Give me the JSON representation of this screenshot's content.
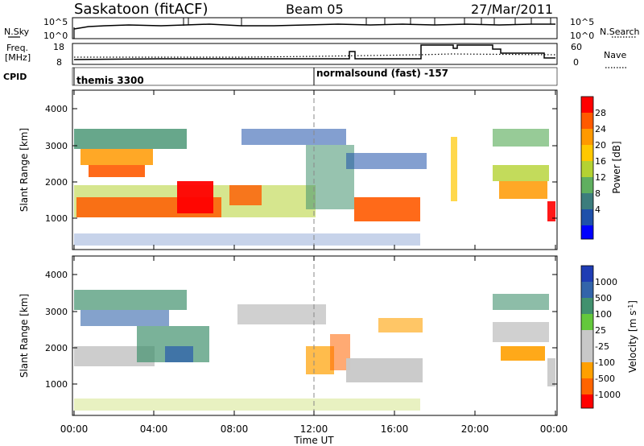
{
  "header": {
    "station": "Saskatoon (fitACF)",
    "beam": "Beam 05",
    "date": "27/Mar/2011"
  },
  "noise_panel": {
    "left_label": "N.Sky",
    "right_label": "N.Search",
    "left_ticks": [
      "10^5",
      "10^0"
    ],
    "right_ticks": [
      "10^5",
      "10^0"
    ]
  },
  "freq_panel": {
    "left_label_1": "Freq.",
    "left_label_2": "[MHz]",
    "left_ticks": [
      "18",
      "8"
    ],
    "right_label": "Nave",
    "right_ticks": [
      "60",
      "0"
    ]
  },
  "cpid_panel": {
    "label": "CPID",
    "programs": [
      {
        "name": "themis 3300",
        "start_ut": 0
      },
      {
        "name": "normalsound (fast) -157",
        "start_ut": 12
      }
    ]
  },
  "power_panel": {
    "ylabel": "Slant Range [km]",
    "colorbar_label": "Power [dB]",
    "colorbar_ticks": [
      "28",
      "24",
      "20",
      "16",
      "12",
      "8",
      "4"
    ],
    "colorbar_colors": [
      "#ff0000",
      "#ff5a00",
      "#ff9900",
      "#ffc800",
      "#b4d232",
      "#5faf5f",
      "#3c7d7d",
      "#1e50aa",
      "#0000ff"
    ]
  },
  "velocity_panel": {
    "ylabel": "Slant Range [km]",
    "colorbar_label": "Velocity [m s",
    "colorbar_sup": "-1",
    "colorbar_close": "]",
    "colorbar_ticks": [
      "1000",
      "500",
      "100",
      "25",
      "-25",
      "-100",
      "-500",
      "-1000"
    ],
    "colorbar_colors": [
      "#1e3cb4",
      "#3264aa",
      "#41916e",
      "#64c83c",
      "#c8c8c8",
      "#c8c8c8",
      "#ffa000",
      "#ff6400",
      "#ff0000"
    ]
  },
  "chart_data": {
    "type": "heatmap",
    "xlabel": "Time UT",
    "x_ticks": [
      "00:00",
      "04:00",
      "08:00",
      "12:00",
      "16:00",
      "20:00",
      "00:00"
    ],
    "y_ticks": [
      "1000",
      "2000",
      "3000",
      "4000"
    ],
    "xlim_hours": [
      0,
      24
    ],
    "ylim_km": [
      0,
      4600
    ]
  }
}
